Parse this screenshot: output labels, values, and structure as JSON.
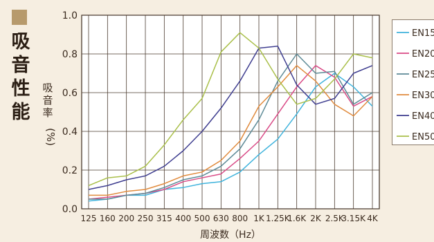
{
  "page_title": "吸音性能",
  "title_box_color": "#b79a6c",
  "chart_data": {
    "type": "line",
    "title": "",
    "xlabel": "周波数（Hz）",
    "ylabel": "吸音率",
    "yunit": "(%)",
    "categories": [
      "125",
      "160",
      "200",
      "250",
      "315",
      "400",
      "500",
      "630",
      "800",
      "1K",
      "1.25K",
      "1.6K",
      "2K",
      "2.5K",
      "3.15K",
      "4K"
    ],
    "ylim": [
      0,
      1.0
    ],
    "yticks": [
      "0.0",
      "0.2",
      "0.4",
      "0.6",
      "0.8",
      "1.0"
    ],
    "grid": true,
    "legend_position": "right",
    "series": [
      {
        "name": "EN15",
        "color": "#3fb3dc",
        "values": [
          0.04,
          0.05,
          0.07,
          0.07,
          0.1,
          0.11,
          0.13,
          0.14,
          0.19,
          0.28,
          0.36,
          0.49,
          0.63,
          0.7,
          0.63,
          0.53
        ]
      },
      {
        "name": "EN20",
        "color": "#d94a86",
        "values": [
          0.05,
          0.06,
          0.07,
          0.08,
          0.1,
          0.14,
          0.16,
          0.18,
          0.26,
          0.35,
          0.49,
          0.63,
          0.74,
          0.68,
          0.53,
          0.58
        ]
      },
      {
        "name": "EN25",
        "color": "#5d8a96",
        "values": [
          0.05,
          0.05,
          0.07,
          0.08,
          0.11,
          0.15,
          0.17,
          0.22,
          0.31,
          0.46,
          0.66,
          0.8,
          0.7,
          0.71,
          0.54,
          0.6
        ]
      },
      {
        "name": "EN30",
        "color": "#e08a3c",
        "values": [
          0.07,
          0.07,
          0.09,
          0.1,
          0.13,
          0.17,
          0.19,
          0.25,
          0.35,
          0.53,
          0.63,
          0.74,
          0.66,
          0.54,
          0.48,
          0.58
        ]
      },
      {
        "name": "EN40",
        "color": "#3e3d8f",
        "values": [
          0.1,
          0.12,
          0.15,
          0.17,
          0.22,
          0.3,
          0.4,
          0.52,
          0.66,
          0.83,
          0.84,
          0.64,
          0.54,
          0.57,
          0.7,
          0.74
        ]
      },
      {
        "name": "EN50",
        "color": "#a9bf49",
        "values": [
          0.12,
          0.16,
          0.17,
          0.22,
          0.33,
          0.46,
          0.57,
          0.81,
          0.91,
          0.83,
          0.67,
          0.54,
          0.57,
          0.67,
          0.8,
          0.78
        ]
      }
    ]
  }
}
